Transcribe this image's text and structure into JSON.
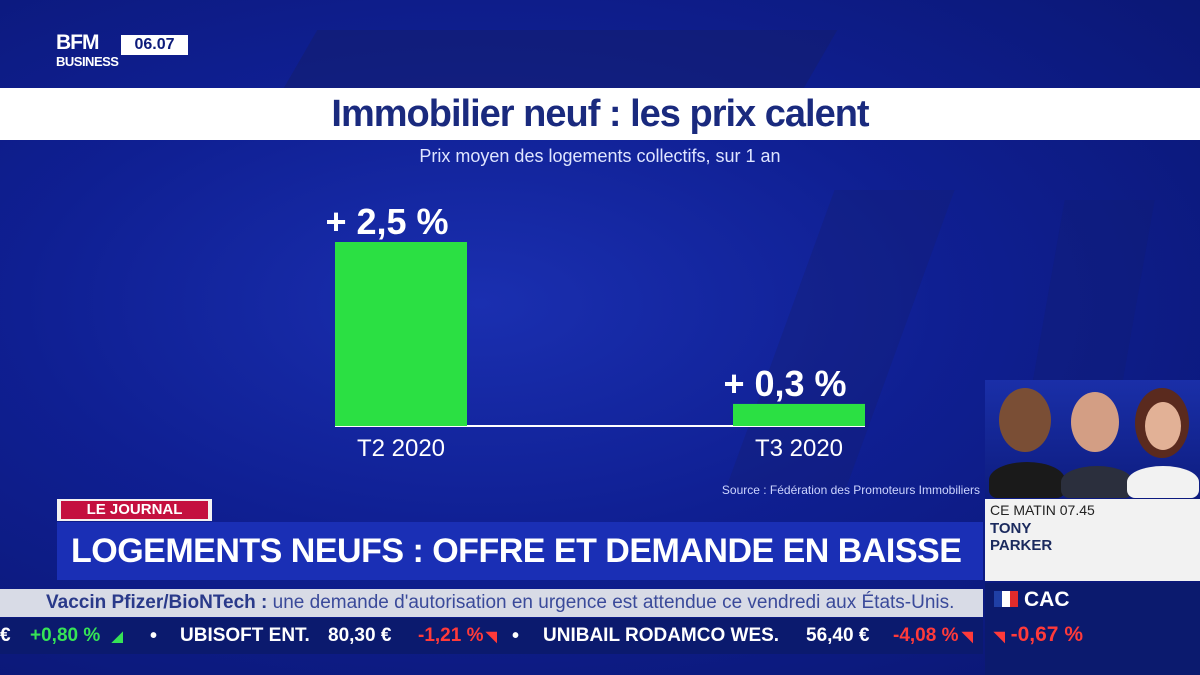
{
  "channel": {
    "logo_top": "BFM",
    "logo_bottom": "BUSINESS",
    "time": "06.07"
  },
  "title": "Immobilier neuf : les prix calent",
  "subtitle": "Prix moyen des logements collectifs, sur 1 an",
  "source": "Source : Fédération des Promoteurs Immobiliers",
  "chart_data": {
    "type": "bar",
    "title": "Immobilier neuf : les prix calent",
    "subtitle": "Prix moyen des logements collectifs, sur 1 an",
    "categories": [
      "T2 2020",
      "T3 2020"
    ],
    "values": [
      2.5,
      0.3
    ],
    "value_labels": [
      "+ 2,5 %",
      "+ 0,3 %"
    ],
    "unit": "%",
    "ylim": [
      0,
      2.5
    ],
    "grid": false,
    "bar_color": "#2be043",
    "baseline_color": "#ffffff"
  },
  "lower_third": {
    "tag": "LE JOURNAL",
    "headline": "LOGEMENTS NEUFS : OFFRE ET DEMANDE EN BAISSE",
    "tag_color": "#c4103f"
  },
  "ticker_news": {
    "lead": "Vaccin Pfizer/BioNTech :",
    "text": " une demande d'autorisation en urgence est attendue ce vendredi aux États-Unis."
  },
  "ticker_stocks": {
    "cut_value": "€",
    "cut_change": "+0,80 %",
    "items": [
      {
        "name": "UBISOFT ENT.",
        "price": "80,30 €",
        "change": "-1,21 %"
      },
      {
        "name": "UNIBAIL RODAMCO WES.",
        "price": "56,40 €",
        "change": "-4,08 %"
      }
    ]
  },
  "panel": {
    "show": "CE MATIN 07.45",
    "guest_first": "TONY",
    "guest_last": "PARKER",
    "index_name": "CAC",
    "index_change": "-0,67 %"
  },
  "colors": {
    "positive": "#36e356",
    "negative": "#ff3a3a",
    "background": "#0f1f92"
  }
}
